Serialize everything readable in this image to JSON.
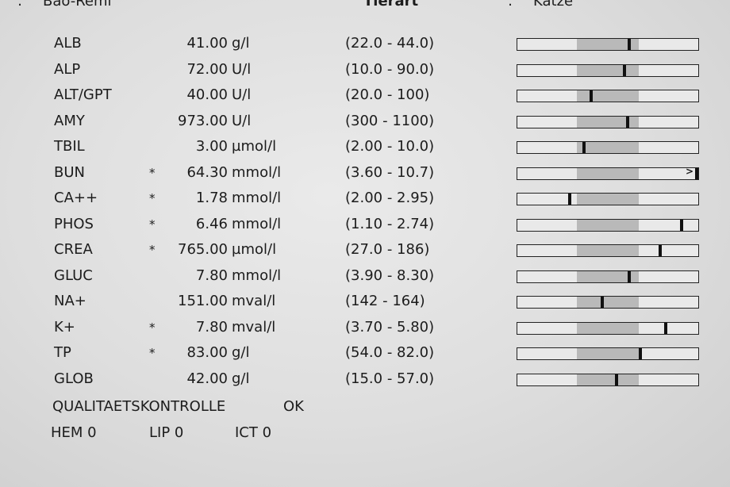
{
  "header": {
    "colon": ":",
    "patient_name": "Bao-Remi",
    "species_label": "Tierart",
    "species_value": "Katze"
  },
  "results": [
    {
      "param": "ALB",
      "flag": "",
      "value": "41.00",
      "unit": "g/l",
      "range": "(22.0  -  44.0)",
      "marker_fraction": 0.62
    },
    {
      "param": "ALP",
      "flag": "",
      "value": "72.00",
      "unit": "U/l",
      "range": "(10.0  -  90.0)",
      "marker_fraction": 0.59
    },
    {
      "param": "ALT/GPT",
      "flag": "",
      "value": "40.00",
      "unit": "U/l",
      "range": "(20.0  -  100)",
      "marker_fraction": 0.41
    },
    {
      "param": "AMY",
      "flag": "",
      "value": "973.00",
      "unit": "U/l",
      "range": "(300  -  1100)",
      "marker_fraction": 0.61
    },
    {
      "param": "TBIL",
      "flag": "",
      "value": "3.00",
      "unit": "µmol/l",
      "range": "(2.00  -  10.0)",
      "marker_fraction": 0.37
    },
    {
      "param": "BUN",
      "flag": "*",
      "value": "64.30",
      "unit": "mmol/l",
      "range": "(3.60  -  10.7)",
      "marker_fraction": 1.0,
      "overflow": ">"
    },
    {
      "param": "CA++",
      "flag": "*",
      "value": "1.78",
      "unit": "mmol/l",
      "range": "(2.00  -  2.95)",
      "marker_fraction": 0.29
    },
    {
      "param": "PHOS",
      "flag": "*",
      "value": "6.46",
      "unit": "mmol/l",
      "range": "(1.10  -  2.74)",
      "marker_fraction": 0.91
    },
    {
      "param": "CREA",
      "flag": "*",
      "value": "765.00",
      "unit": "µmol/l",
      "range": "(27.0  -  186)",
      "marker_fraction": 0.79
    },
    {
      "param": "GLUC",
      "flag": "",
      "value": "7.80",
      "unit": "mmol/l",
      "range": "(3.90  -  8.30)",
      "marker_fraction": 0.62
    },
    {
      "param": "NA+",
      "flag": "",
      "value": "151.00",
      "unit": "mval/l",
      "range": "(142  -  164)",
      "marker_fraction": 0.47
    },
    {
      "param": "K+",
      "flag": "*",
      "value": "7.80",
      "unit": "mval/l",
      "range": "(3.70  -  5.80)",
      "marker_fraction": 0.82
    },
    {
      "param": "TP",
      "flag": "*",
      "value": "83.00",
      "unit": "g/l",
      "range": "(54.0  -  82.0)",
      "marker_fraction": 0.68
    },
    {
      "param": "GLOB",
      "flag": "",
      "value": "42.00",
      "unit": "g/l",
      "range": "(15.0  -  57.0)",
      "marker_fraction": 0.55
    }
  ],
  "quality_control": {
    "label": "QUALITAETSKONTROLLE",
    "value": "OK"
  },
  "indices": [
    "HEM 0",
    "LIP 0",
    "ICT 0"
  ]
}
